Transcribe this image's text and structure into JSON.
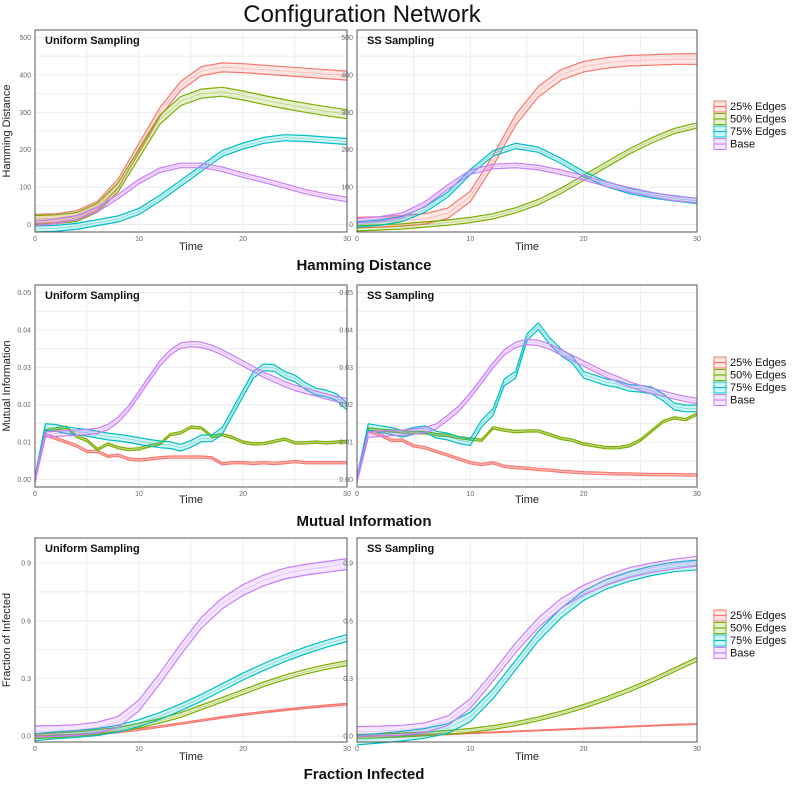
{
  "title": "Configuration Network",
  "legend": {
    "entries": [
      {
        "label": "25% Edges",
        "color": "#F8766D"
      },
      {
        "label": "50% Edges",
        "color": "#7CAE00"
      },
      {
        "label": "75% Edges",
        "color": "#00BFC4"
      },
      {
        "label": "Base",
        "color": "#C77CFF"
      }
    ]
  },
  "chart_data": [
    {
      "type": "line",
      "section": "Hamming Distance",
      "panel": "Uniform Sampling",
      "xlabel": "Time",
      "ylabel": "Hamming Distance",
      "xlim": [
        0,
        30
      ],
      "ylim": [
        -20,
        520
      ],
      "xticks": [
        0,
        10,
        20,
        30
      ],
      "yticks": [
        0,
        100,
        200,
        300,
        400,
        500
      ],
      "x": [
        0,
        2,
        4,
        6,
        8,
        10,
        12,
        14,
        16,
        18,
        20,
        22,
        24,
        26,
        28,
        30
      ],
      "series": [
        {
          "name": "25% Edges",
          "values": [
            15,
            17,
            25,
            50,
            110,
            205,
            300,
            370,
            410,
            420,
            418,
            414,
            410,
            406,
            402,
            398
          ],
          "band": 12
        },
        {
          "name": "50% Edges",
          "values": [
            12,
            14,
            20,
            45,
            100,
            190,
            280,
            330,
            350,
            355,
            345,
            333,
            322,
            312,
            303,
            295
          ],
          "band": 12
        },
        {
          "name": "75% Edges",
          "values": [
            -12,
            -10,
            -5,
            5,
            15,
            35,
            70,
            110,
            150,
            190,
            210,
            225,
            232,
            230,
            226,
            222
          ],
          "band": 8
        },
        {
          "name": "Base",
          "values": [
            3,
            8,
            18,
            40,
            75,
            115,
            145,
            158,
            158,
            148,
            132,
            118,
            103,
            88,
            76,
            67
          ],
          "band": 6
        }
      ]
    },
    {
      "type": "line",
      "section": "Hamming Distance",
      "panel": "SS Sampling",
      "xlabel": "Time",
      "ylabel": "",
      "xlim": [
        0,
        30
      ],
      "ylim": [
        -20,
        520
      ],
      "xticks": [
        0,
        10,
        20,
        30
      ],
      "yticks": [
        0,
        100,
        200,
        300,
        400,
        500
      ],
      "x": [
        0,
        2,
        4,
        6,
        8,
        10,
        12,
        14,
        16,
        18,
        20,
        22,
        24,
        26,
        28,
        30
      ],
      "series": [
        {
          "name": "25% Edges",
          "values": [
            5,
            7,
            10,
            15,
            30,
            75,
            170,
            280,
            355,
            400,
            422,
            432,
            438,
            440,
            442,
            442
          ],
          "band": 14
        },
        {
          "name": "50% Edges",
          "values": [
            -10,
            -8,
            -5,
            0,
            5,
            12,
            22,
            38,
            60,
            90,
            125,
            160,
            195,
            225,
            250,
            265
          ],
          "band": 7
        },
        {
          "name": "75% Edges",
          "values": [
            0,
            5,
            15,
            40,
            80,
            140,
            190,
            210,
            200,
            170,
            135,
            108,
            90,
            78,
            70,
            63
          ],
          "band": 7
        },
        {
          "name": "Base",
          "values": [
            10,
            15,
            25,
            55,
            100,
            140,
            155,
            158,
            152,
            140,
            125,
            108,
            93,
            80,
            70,
            64
          ],
          "band": 6
        }
      ]
    },
    {
      "type": "line",
      "section": "Mutual Information",
      "panel": "Uniform Sampling",
      "xlabel": "Time",
      "ylabel": "Mutual Information",
      "xlim": [
        0,
        30
      ],
      "ylim": [
        -0.002,
        0.052
      ],
      "xticks": [
        0,
        10,
        20,
        30
      ],
      "yticks": [
        0,
        0.01,
        0.02,
        0.03,
        0.04,
        0.05
      ],
      "ytick_labels": [
        "0.00",
        "0.01",
        "0.02",
        "0.03",
        "0.04",
        "0.05"
      ],
      "x": [
        0,
        1,
        2,
        3,
        4,
        5,
        6,
        7,
        8,
        9,
        10,
        11,
        12,
        13,
        14,
        15,
        16,
        17,
        18,
        19,
        20,
        21,
        22,
        23,
        24,
        25,
        26,
        27,
        28,
        29,
        30
      ],
      "series": [
        {
          "name": "25% Edges",
          "values": [
            0,
            0.012,
            0.011,
            0.01,
            0.009,
            0.0075,
            0.0075,
            0.0062,
            0.0065,
            0.0055,
            0.0052,
            0.0055,
            0.0058,
            0.006,
            0.006,
            0.006,
            0.006,
            0.0058,
            0.0042,
            0.0045,
            0.0045,
            0.0043,
            0.0045,
            0.0043,
            0.0045,
            0.0048,
            0.0045,
            0.0045,
            0.0045,
            0.0045,
            0.0045
          ],
          "band": 0.0003
        },
        {
          "name": "50% Edges",
          "values": [
            0,
            0.013,
            0.0135,
            0.014,
            0.0115,
            0.0105,
            0.008,
            0.0095,
            0.0085,
            0.008,
            0.0082,
            0.009,
            0.0095,
            0.012,
            0.0125,
            0.014,
            0.0138,
            0.0115,
            0.012,
            0.0112,
            0.01,
            0.0095,
            0.0096,
            0.0102,
            0.0108,
            0.0098,
            0.0098,
            0.01,
            0.0098,
            0.01,
            0.0102
          ],
          "band": 0.0003
        },
        {
          "name": "75% Edges",
          "values": [
            0,
            0.014,
            0.0138,
            0.0132,
            0.0128,
            0.0125,
            0.012,
            0.0115,
            0.0112,
            0.0108,
            0.0103,
            0.0098,
            0.0094,
            0.0092,
            0.0085,
            0.0095,
            0.011,
            0.011,
            0.013,
            0.018,
            0.023,
            0.028,
            0.03,
            0.0298,
            0.028,
            0.027,
            0.025,
            0.0235,
            0.023,
            0.022,
            0.0195
          ],
          "band": 0.0009
        },
        {
          "name": "Base",
          "values": [
            0,
            0.012,
            0.0122,
            0.0124,
            0.0125,
            0.0127,
            0.013,
            0.014,
            0.016,
            0.019,
            0.023,
            0.027,
            0.031,
            0.034,
            0.0358,
            0.0362,
            0.036,
            0.0352,
            0.034,
            0.0325,
            0.031,
            0.0295,
            0.028,
            0.0268,
            0.0255,
            0.0245,
            0.0237,
            0.023,
            0.0222,
            0.0215,
            0.021
          ],
          "band": 0.0007
        }
      ]
    },
    {
      "type": "line",
      "section": "Mutual Information",
      "panel": "SS Sampling",
      "xlabel": "Time",
      "ylabel": "",
      "xlim": [
        0,
        30
      ],
      "ylim": [
        -0.002,
        0.052
      ],
      "xticks": [
        0,
        10,
        20,
        30
      ],
      "yticks": [
        0,
        0.01,
        0.02,
        0.03,
        0.04,
        0.05
      ],
      "ytick_labels": [
        "0.00",
        "0.01",
        "0.02",
        "0.03",
        "0.04",
        "0.05"
      ],
      "x": [
        0,
        1,
        2,
        3,
        4,
        5,
        6,
        7,
        8,
        9,
        10,
        11,
        12,
        13,
        14,
        15,
        16,
        17,
        18,
        19,
        20,
        21,
        22,
        23,
        24,
        25,
        26,
        27,
        28,
        29,
        30
      ],
      "series": [
        {
          "name": "25% Edges",
          "values": [
            0,
            0.013,
            0.012,
            0.0105,
            0.0105,
            0.009,
            0.0085,
            0.0075,
            0.0065,
            0.0055,
            0.0045,
            0.004,
            0.0045,
            0.0035,
            0.0032,
            0.003,
            0.0027,
            0.0025,
            0.0022,
            0.002,
            0.0018,
            0.0017,
            0.0016,
            0.0015,
            0.0015,
            0.0014,
            0.0013,
            0.0013,
            0.0013,
            0.0012,
            0.0012
          ],
          "band": 0.0003
        },
        {
          "name": "50% Edges",
          "values": [
            0,
            0.0135,
            0.0132,
            0.013,
            0.0128,
            0.0125,
            0.0125,
            0.012,
            0.0118,
            0.0112,
            0.0108,
            0.0105,
            0.0138,
            0.0132,
            0.0128,
            0.013,
            0.013,
            0.012,
            0.011,
            0.0105,
            0.0095,
            0.009,
            0.0085,
            0.0085,
            0.009,
            0.0105,
            0.013,
            0.0155,
            0.0165,
            0.016,
            0.0175
          ],
          "band": 0.0003
        },
        {
          "name": "75% Edges",
          "values": [
            0,
            0.014,
            0.0135,
            0.013,
            0.0122,
            0.013,
            0.0135,
            0.012,
            0.0115,
            0.0105,
            0.01,
            0.015,
            0.018,
            0.026,
            0.028,
            0.038,
            0.041,
            0.037,
            0.034,
            0.032,
            0.028,
            0.027,
            0.026,
            0.0255,
            0.0245,
            0.0243,
            0.0238,
            0.022,
            0.0195,
            0.019,
            0.019
          ],
          "band": 0.0009
        },
        {
          "name": "Base",
          "values": [
            0,
            0.012,
            0.0122,
            0.0124,
            0.0125,
            0.0128,
            0.0132,
            0.0142,
            0.0165,
            0.019,
            0.0225,
            0.0265,
            0.0305,
            0.034,
            0.036,
            0.0368,
            0.0365,
            0.0355,
            0.034,
            0.0325,
            0.031,
            0.0295,
            0.028,
            0.0268,
            0.0255,
            0.0245,
            0.0237,
            0.023,
            0.0222,
            0.0215,
            0.021
          ],
          "band": 0.0007
        }
      ]
    },
    {
      "type": "line",
      "section": "Fraction Infected",
      "panel": "Uniform Sampling",
      "xlabel": "Time",
      "ylabel": "Fraction of Infected",
      "xlim": [
        0,
        30
      ],
      "ylim": [
        -0.03,
        1.03
      ],
      "xticks": [
        0,
        10,
        20,
        30
      ],
      "yticks": [
        0,
        0.3,
        0.6,
        0.9
      ],
      "ytick_labels": [
        "0.0",
        "0.3",
        "0.6",
        "0.9"
      ],
      "x": [
        0,
        2,
        4,
        6,
        8,
        10,
        12,
        14,
        16,
        18,
        20,
        22,
        24,
        26,
        28,
        30
      ],
      "series": [
        {
          "name": "25% Edges",
          "values": [
            0.0,
            0.003,
            0.006,
            0.012,
            0.022,
            0.035,
            0.05,
            0.066,
            0.082,
            0.098,
            0.112,
            0.125,
            0.137,
            0.148,
            0.158,
            0.167
          ],
          "band": 0.004
        },
        {
          "name": "50% Edges",
          "values": [
            0.0,
            0.005,
            0.012,
            0.022,
            0.035,
            0.055,
            0.08,
            0.11,
            0.15,
            0.19,
            0.23,
            0.27,
            0.305,
            0.335,
            0.36,
            0.38
          ],
          "band": 0.012
        },
        {
          "name": "75% Edges",
          "values": [
            -0.005,
            0.005,
            0.012,
            0.022,
            0.04,
            0.068,
            0.105,
            0.15,
            0.2,
            0.255,
            0.31,
            0.36,
            0.405,
            0.445,
            0.48,
            0.51
          ],
          "band": 0.018
        },
        {
          "name": "Base",
          "values": [
            0.025,
            0.027,
            0.032,
            0.045,
            0.075,
            0.16,
            0.3,
            0.45,
            0.59,
            0.69,
            0.76,
            0.81,
            0.845,
            0.865,
            0.88,
            0.895
          ],
          "band": 0.028
        }
      ]
    },
    {
      "type": "line",
      "section": "Fraction Infected",
      "panel": "SS Sampling",
      "xlabel": "Time",
      "ylabel": "",
      "xlim": [
        0,
        30
      ],
      "ylim": [
        -0.03,
        1.03
      ],
      "xticks": [
        0,
        10,
        20,
        30
      ],
      "yticks": [
        0,
        0.3,
        0.6,
        0.9
      ],
      "ytick_labels": [
        "0.0",
        "0.3",
        "0.6",
        "0.9"
      ],
      "x": [
        0,
        2,
        4,
        6,
        8,
        10,
        12,
        14,
        16,
        18,
        20,
        22,
        24,
        26,
        28,
        30
      ],
      "series": [
        {
          "name": "25% Edges",
          "values": [
            0.0,
            0.002,
            0.004,
            0.007,
            0.01,
            0.015,
            0.02,
            0.025,
            0.03,
            0.035,
            0.04,
            0.045,
            0.05,
            0.055,
            0.06,
            0.063
          ],
          "band": 0.002
        },
        {
          "name": "50% Edges",
          "values": [
            0.0,
            0.002,
            0.006,
            0.012,
            0.02,
            0.03,
            0.045,
            0.065,
            0.09,
            0.12,
            0.155,
            0.195,
            0.24,
            0.29,
            0.345,
            0.4
          ],
          "band": 0.01
        },
        {
          "name": "75% Edges",
          "values": [
            -0.02,
            -0.01,
            0.0,
            0.015,
            0.04,
            0.1,
            0.22,
            0.37,
            0.52,
            0.64,
            0.73,
            0.79,
            0.83,
            0.86,
            0.88,
            0.89
          ],
          "band": 0.025
        },
        {
          "name": "Base",
          "values": [
            0.025,
            0.027,
            0.032,
            0.045,
            0.08,
            0.17,
            0.31,
            0.46,
            0.59,
            0.69,
            0.76,
            0.81,
            0.85,
            0.875,
            0.895,
            0.91
          ],
          "band": 0.025
        }
      ]
    }
  ]
}
